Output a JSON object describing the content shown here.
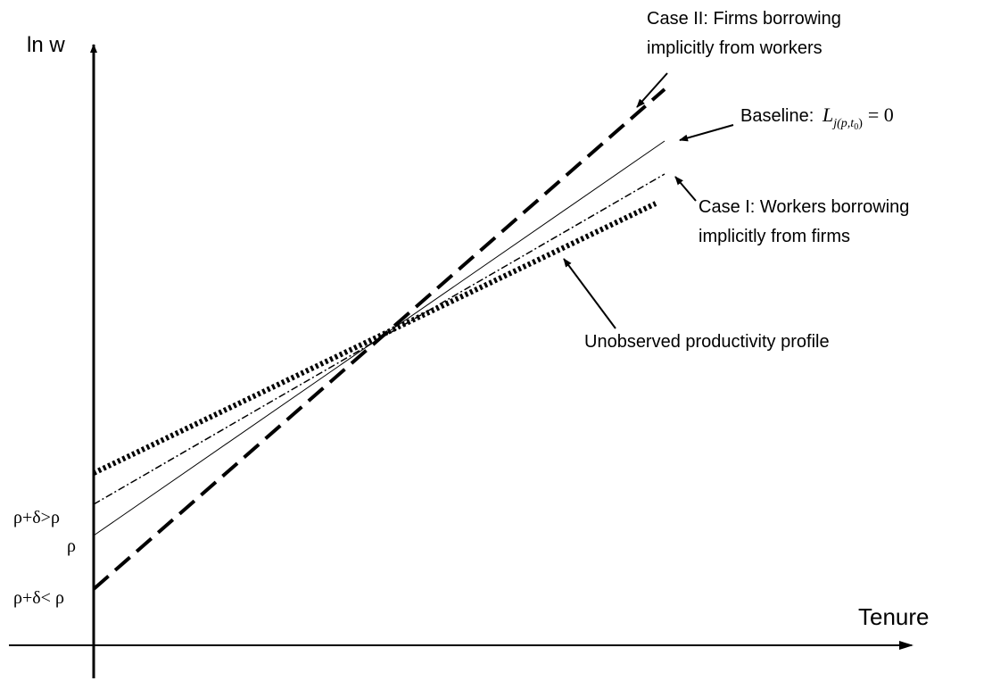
{
  "axes": {
    "y_label": "ln w",
    "x_label": "Tenure"
  },
  "intercepts": {
    "upper": "ρ+δ>ρ",
    "base": "ρ",
    "lower": "ρ+δ< ρ"
  },
  "annotations": {
    "case2": [
      "Case II: Firms borrowing",
      "implicitly from workers"
    ],
    "baseline": {
      "label": "Baseline:",
      "symbol": "L",
      "subscript": "j(p,t",
      "subscript_index": "0",
      "subscript_close": ")",
      "equation": "= 0"
    },
    "case1": [
      "Case I: Workers borrowing",
      "implicitly from firms"
    ],
    "productivity": "Unobserved productivity profile"
  }
}
